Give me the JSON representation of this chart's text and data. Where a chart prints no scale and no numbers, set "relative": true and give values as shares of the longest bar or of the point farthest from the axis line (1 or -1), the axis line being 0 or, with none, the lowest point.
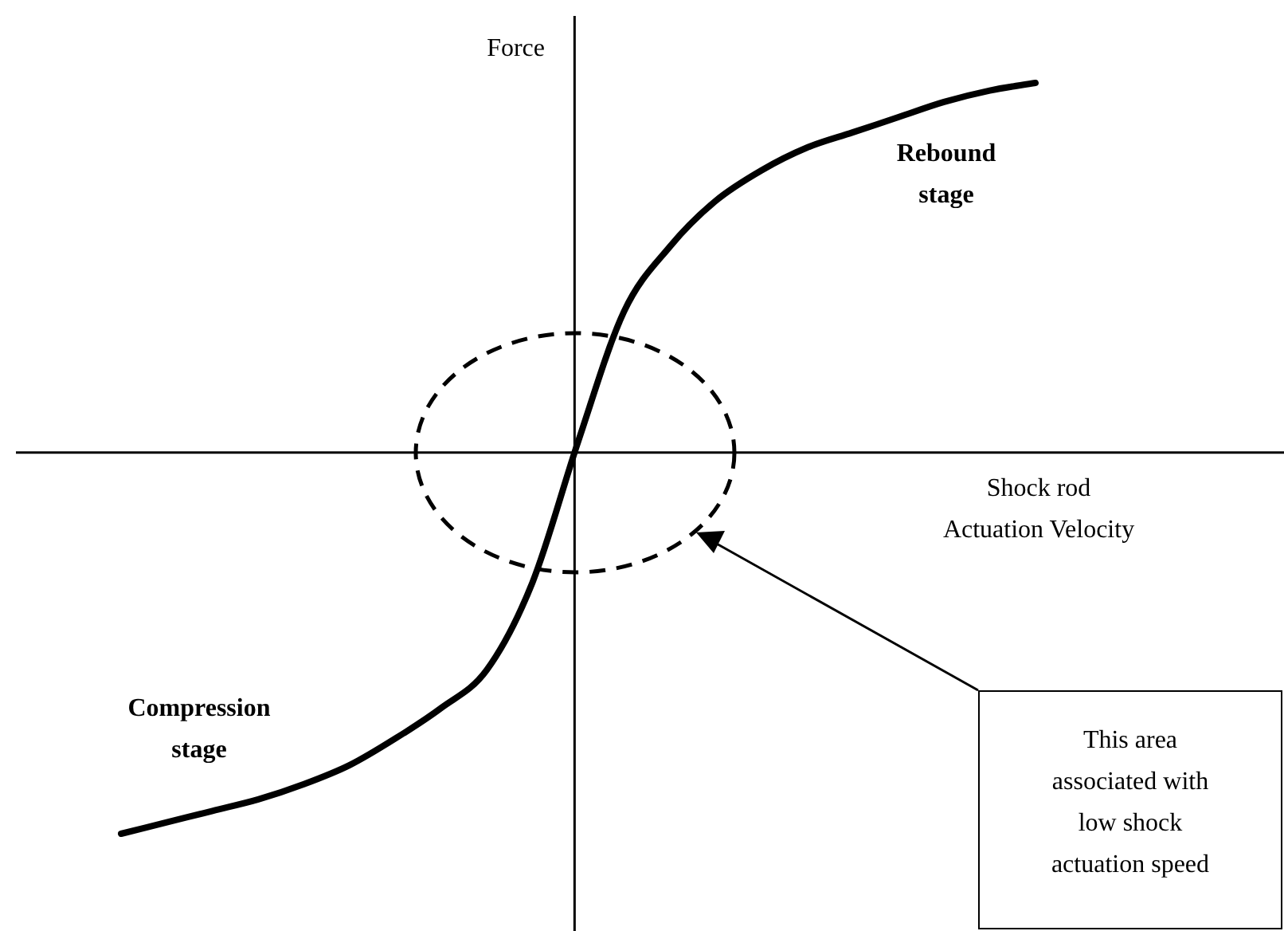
{
  "chart_data": {
    "type": "line",
    "relative": true,
    "xlabel": "Shock rod Actuation Velocity",
    "ylabel": "Force",
    "categories": [
      null,
      null,
      null,
      null,
      null,
      null,
      null,
      null,
      null,
      null,
      null,
      null,
      null,
      null,
      null,
      null,
      null,
      null,
      null,
      null,
      null
    ],
    "color": "#000000",
    "values": [
      -1.0,
      -0.97,
      -0.94,
      -0.91,
      -0.87,
      -0.82,
      -0.75,
      -0.67,
      -0.57,
      -0.34,
      0.03,
      0.37,
      0.54,
      0.66,
      0.74,
      0.8,
      0.84,
      0.88,
      0.92,
      0.95,
      0.97
    ],
    "annotations": [
      "Rebound stage",
      "Compression stage",
      "This area associated with low shock actuation speed"
    ]
  }
}
